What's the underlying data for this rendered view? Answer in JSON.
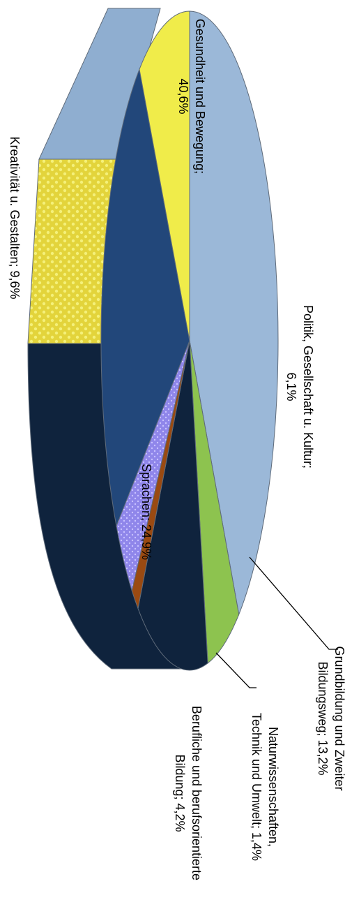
{
  "chart_data": {
    "type": "pie",
    "title": "",
    "orientation": "rotated 90° clockwise, 3D",
    "slices": [
      {
        "label": "Gesundheit und Bewegung",
        "value": 40.6,
        "color": "#9bb8d8"
      },
      {
        "label": "Politik, Gesellschaft u. Kultur",
        "value": 6.1,
        "color": "#8dc34f"
      },
      {
        "label": "Grundbildung und Zweiter Bildungsweg",
        "value": 13.2,
        "color": "#0f233d"
      },
      {
        "label": "Naturwissenschaften, Technik und Umwelt",
        "value": 1.4,
        "color": "#9a4a12"
      },
      {
        "label": "Berufliche und berufsorientierte Bildung",
        "value": 4.2,
        "color": "#8f86ea"
      },
      {
        "label": "Sprachen",
        "value": 24.9,
        "color": "#22477a"
      },
      {
        "label": "Kreativität u. Gestalten",
        "value": 9.6,
        "color": "#f0ec4a"
      }
    ],
    "labels": [
      {
        "text": "Gesundheit und Bewegung;",
        "value_text": "40,6%"
      },
      {
        "text": "Politik, Gesellschaft u. Kultur;",
        "value_text": "6,1%"
      },
      {
        "text": "Grundbildung und Zweiter",
        "value_text": "Bildungsweg; 13,2%"
      },
      {
        "text": "Naturwissenschaften,",
        "value_text": "Technik und Umwelt; 1,4%"
      },
      {
        "text": "Berufliche und berufsorientierte",
        "value_text": "Bildung; 4,2%"
      },
      {
        "text": "Sprachen; 24,9%",
        "value_text": ""
      },
      {
        "text": "Kreativität u. Gestalten; 9,6%",
        "value_text": ""
      }
    ]
  }
}
